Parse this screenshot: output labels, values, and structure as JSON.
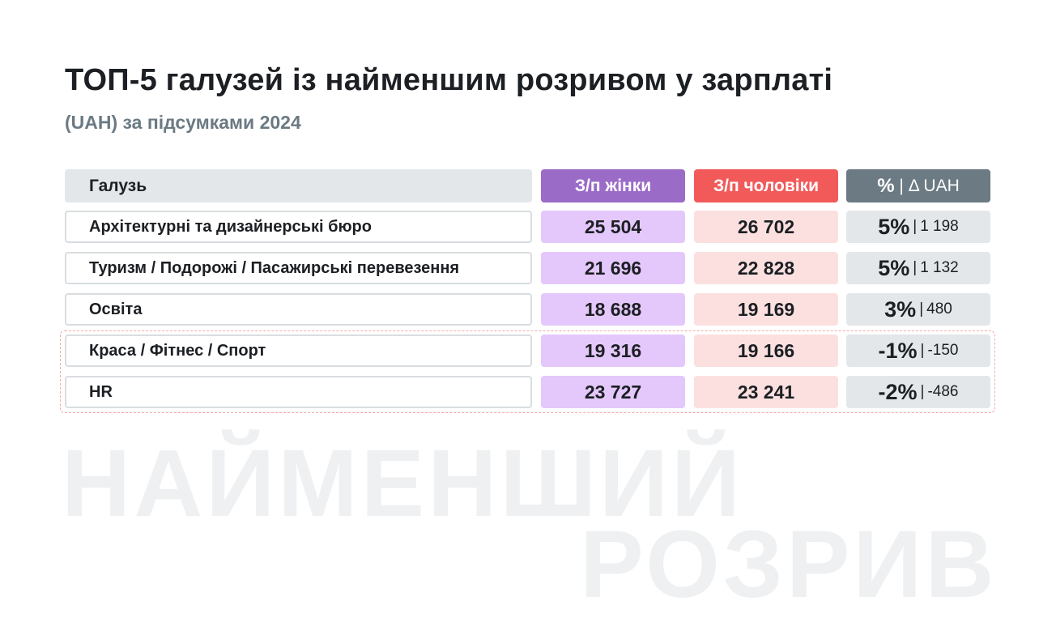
{
  "title": "ТОП-5 галузей із найменшим розривом у зарплаті",
  "subtitle": "(UAH) за підсумками 2024",
  "watermark": {
    "line1": "НАЙМЕНШИЙ",
    "line2": "РОЗРИВ"
  },
  "colors": {
    "women": "#9b6bc8",
    "women_light": "#e4c8fb",
    "men": "#f25a5a",
    "men_light": "#fbe0df",
    "neutral": "#6b7a83",
    "neutral_light": "#e3e7ea",
    "highlight_border": "#f4a9a6"
  },
  "chart_data": {
    "type": "table",
    "title": "ТОП-5 галузей із найменшим розривом у зарплаті",
    "subtitle": "(UAH) за підсумками 2024",
    "columns": {
      "industry": "Галузь",
      "women": "З/п жінки",
      "men": "З/п чоловіки",
      "pct": "%",
      "sep": "|",
      "delta": "Δ UAH"
    },
    "rows": [
      {
        "industry": "Архітектурні та дизайнерські бюро",
        "women": "25 504",
        "men": "26 702",
        "pct": "5%",
        "sep": "|",
        "delta": "1 198"
      },
      {
        "industry": "Туризм / Подорожі / Пасажирські перевезення",
        "women": "21 696",
        "men": "22 828",
        "pct": "5%",
        "sep": "|",
        "delta": "1 132"
      },
      {
        "industry": "Освіта",
        "women": "18 688",
        "men": "19 169",
        "pct": "3%",
        "sep": "|",
        "delta": "480"
      },
      {
        "industry": "Краса / Фітнес / Спорт",
        "women": "19 316",
        "men": "19 166",
        "pct": "-1%",
        "sep": "|",
        "delta": "-150"
      },
      {
        "industry": "HR",
        "women": "23 727",
        "men": "23 241",
        "pct": "-2%",
        "sep": "|",
        "delta": "-486"
      }
    ],
    "highlighted_rows": [
      3,
      4
    ]
  }
}
